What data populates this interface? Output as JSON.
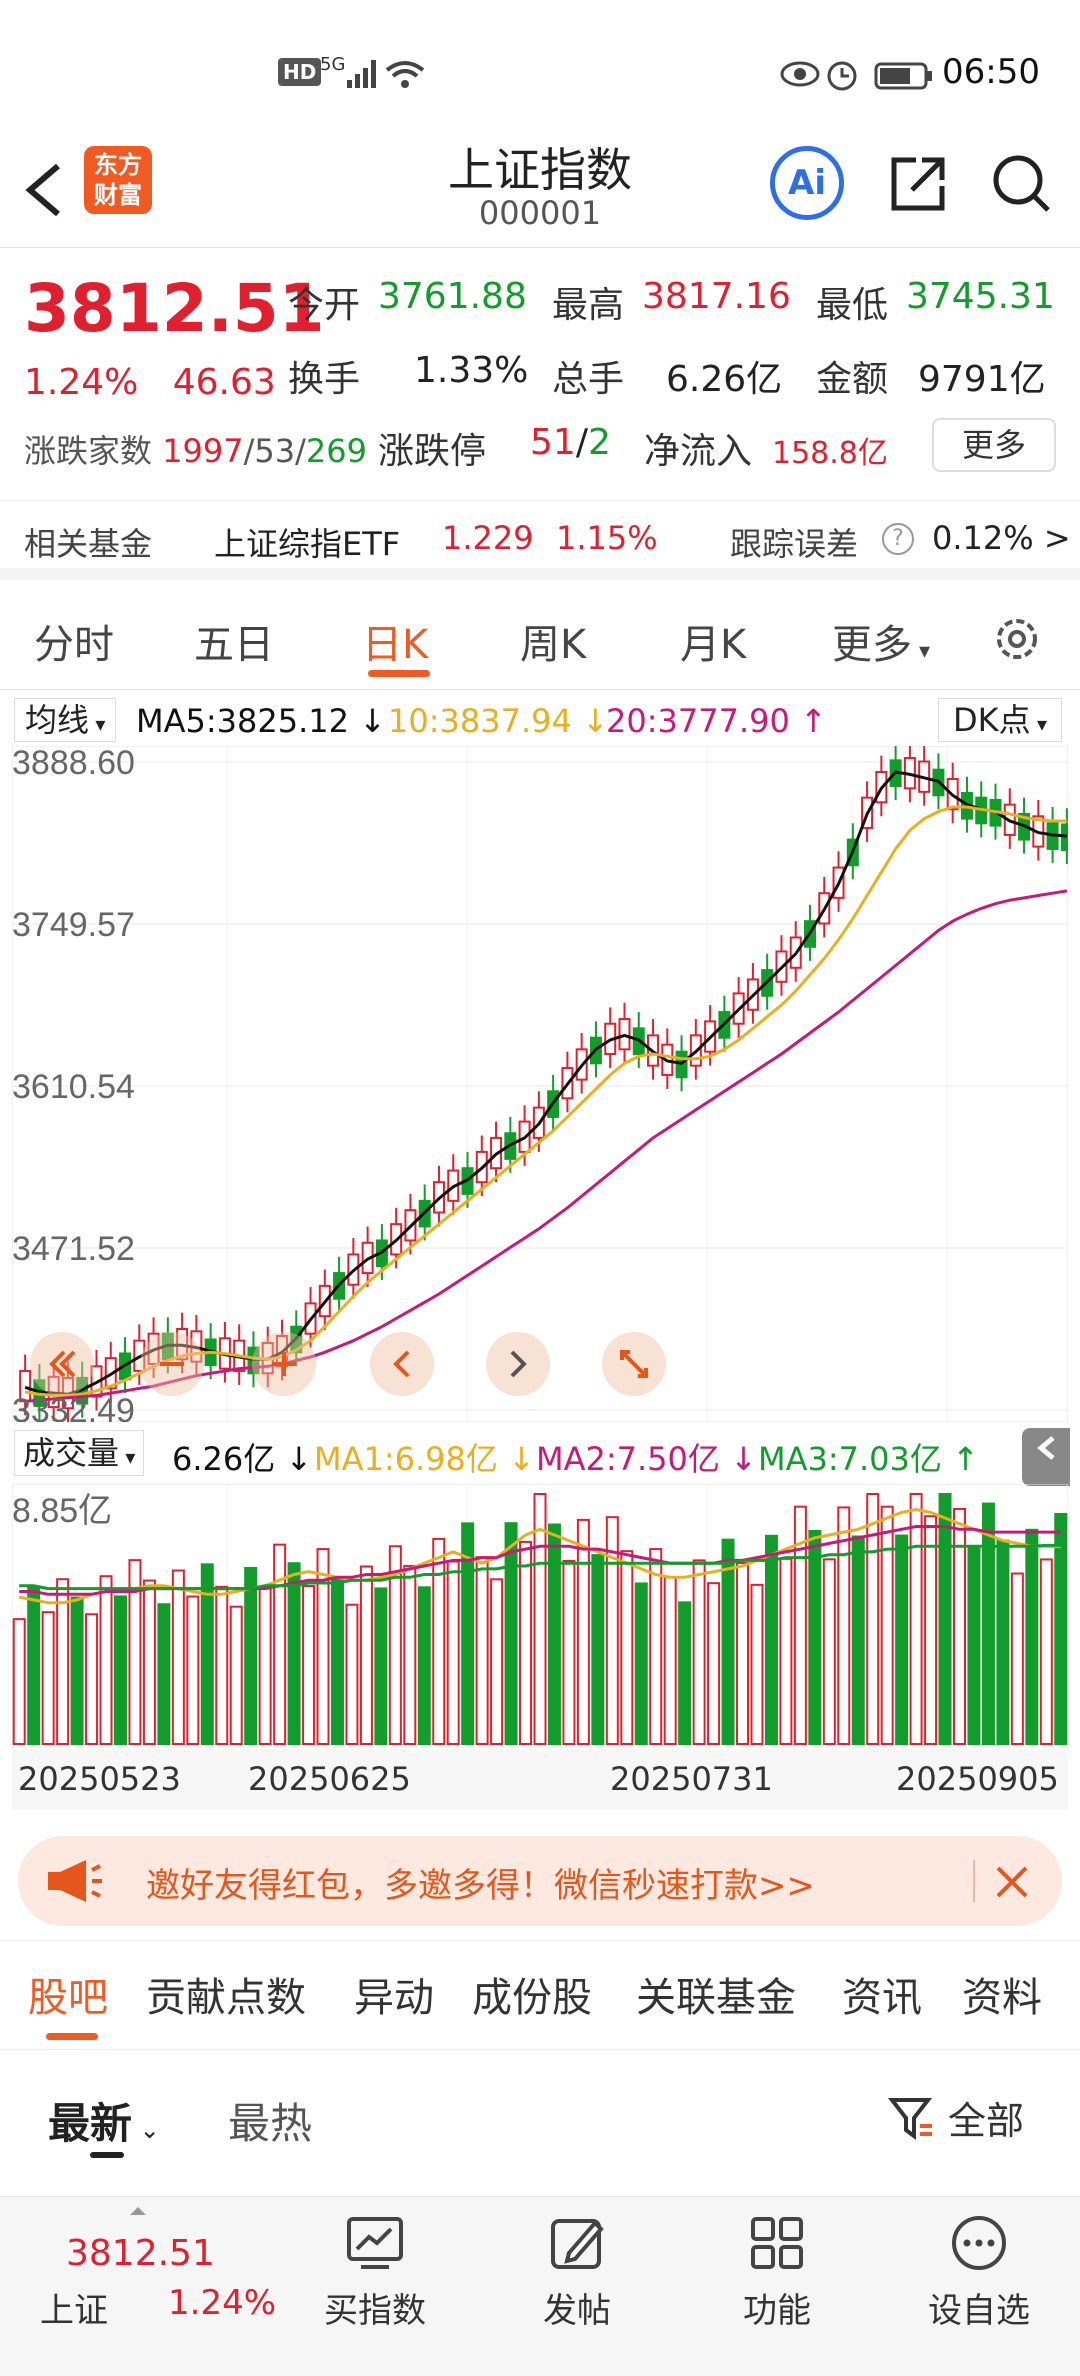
{
  "status_bar": {
    "time": "06:50",
    "hd": "HD",
    "network": "5G"
  },
  "header": {
    "logo_line1": "东方",
    "logo_line2": "财富",
    "title": "上证指数",
    "code": "000001",
    "ai_label": "Ai"
  },
  "quote": {
    "price": "3812.51",
    "change_pct": "1.24%",
    "change_pts": "46.63",
    "open_label": "今开",
    "open": "3761.88",
    "high_label": "最高",
    "high": "3817.16",
    "low_label": "最低",
    "low": "3745.31",
    "turnover_rate_label": "换手",
    "turnover_rate": "1.33%",
    "volume_label": "总手",
    "volume": "6.26亿",
    "amount_label": "金额",
    "amount": "9791亿",
    "breadth_label": "涨跌家数",
    "breadth_up": "1997",
    "breadth_flat": "53",
    "breadth_down": "269",
    "limit_label": "涨跌停",
    "limit_up": "51",
    "limit_down": "2",
    "netflow_label": "净流入",
    "netflow": "158.8亿",
    "more_label": "更多"
  },
  "fund": {
    "label": "相关基金",
    "name": "上证综指ETF",
    "price": "1.229",
    "pct": "1.15%",
    "tracking_label": "跟踪误差",
    "tracking_value": "0.12% >"
  },
  "period_tabs": [
    "分时",
    "五日",
    "日K",
    "周K",
    "月K",
    "更多"
  ],
  "active_period": "日K",
  "ma_legend": {
    "selector": "均线",
    "ma5": "MA5:3825.12",
    "ma10": "10:3837.94",
    "ma20": "20:3777.90",
    "dk": "DK点"
  },
  "vol_legend": {
    "selector": "成交量",
    "vol": "6.26亿",
    "ma1": "MA1:6.98亿",
    "ma2": "MA2:7.50亿",
    "ma3": "MA3:7.03亿"
  },
  "colors": {
    "up": "#e0202e",
    "down": "#129c2c",
    "ma5": "#111111",
    "ma10": "#e8b020",
    "ma20": "#c8197a",
    "accent": "#f15a22"
  },
  "chart_data": [
    {
      "type": "candlestick",
      "y_tick_labels": [
        "3888.60",
        "3749.57",
        "3610.54",
        "3471.52",
        "3332.49"
      ],
      "ylim": [
        3332.49,
        3888.6
      ],
      "grid": true,
      "series": [
        {
          "name": "MA5",
          "values": [
            3352,
            3348,
            3347,
            3346,
            3350,
            3356,
            3363,
            3371,
            3378,
            3384,
            3388,
            3388,
            3386,
            3383,
            3380,
            3378,
            3376,
            3376,
            3382,
            3394,
            3410,
            3425,
            3440,
            3452,
            3462,
            3468,
            3478,
            3490,
            3502,
            3514,
            3524,
            3530,
            3540,
            3552,
            3560,
            3566,
            3578,
            3596,
            3612,
            3628,
            3642,
            3650,
            3654,
            3650,
            3640,
            3632,
            3630,
            3640,
            3652,
            3664,
            3676,
            3688,
            3700,
            3712,
            3724,
            3742,
            3762,
            3784,
            3812,
            3844,
            3866,
            3880,
            3878,
            3875,
            3872,
            3860,
            3852,
            3848,
            3846,
            3838,
            3834,
            3828,
            3826,
            3825
          ]
        },
        {
          "name": "10",
          "values": [
            3348,
            3346,
            3345,
            3345,
            3346,
            3349,
            3353,
            3358,
            3364,
            3370,
            3375,
            3379,
            3381,
            3382,
            3381,
            3379,
            3377,
            3376,
            3378,
            3384,
            3392,
            3404,
            3417,
            3430,
            3442,
            3452,
            3462,
            3472,
            3482,
            3492,
            3502,
            3512,
            3522,
            3532,
            3542,
            3552,
            3562,
            3572,
            3584,
            3596,
            3608,
            3620,
            3630,
            3636,
            3638,
            3636,
            3634,
            3634,
            3636,
            3642,
            3650,
            3660,
            3670,
            3680,
            3692,
            3706,
            3720,
            3736,
            3754,
            3774,
            3794,
            3814,
            3830,
            3840,
            3846,
            3850,
            3850,
            3848,
            3846,
            3844,
            3841,
            3839,
            3838,
            3838
          ]
        },
        {
          "name": "20",
          "values": [
            3340,
            3341,
            3342,
            3343,
            3344,
            3345,
            3347,
            3349,
            3351,
            3353,
            3356,
            3359,
            3362,
            3364,
            3366,
            3368,
            3369,
            3370,
            3372,
            3375,
            3378,
            3382,
            3387,
            3392,
            3398,
            3404,
            3411,
            3418,
            3425,
            3432,
            3440,
            3448,
            3456,
            3464,
            3472,
            3480,
            3488,
            3497,
            3506,
            3516,
            3526,
            3536,
            3546,
            3556,
            3566,
            3574,
            3582,
            3590,
            3598,
            3606,
            3614,
            3622,
            3630,
            3638,
            3647,
            3656,
            3665,
            3674,
            3684,
            3694,
            3704,
            3714,
            3724,
            3734,
            3744,
            3752,
            3758,
            3763,
            3767,
            3770,
            3772,
            3774,
            3776,
            3778
          ]
        }
      ]
    },
    {
      "type": "bar",
      "y_tick_labels": [
        "8.85亿"
      ],
      "x_tick_labels": [
        "20250523",
        "20250625",
        "20250731",
        "20250905"
      ],
      "series": [
        {
          "name": "MA1",
          "values": [
            5.2,
            5.1,
            5.0,
            5.0,
            5.1,
            5.3,
            5.4,
            5.5,
            5.5,
            5.6,
            5.6,
            5.5,
            5.4,
            5.3,
            5.3,
            5.4,
            5.5,
            5.6,
            5.8,
            6.0,
            6.1,
            6.0,
            5.9,
            5.8,
            5.8,
            5.9,
            6.0,
            6.2,
            6.4,
            6.6,
            6.8,
            6.6,
            6.4,
            6.6,
            7.0,
            7.4,
            7.6,
            7.4,
            7.2,
            7.0,
            6.8,
            6.6,
            6.4,
            6.2,
            6.0,
            5.9,
            5.9,
            6.0,
            6.1,
            6.2,
            6.3,
            6.5,
            6.7,
            6.9,
            7.1,
            7.3,
            7.4,
            7.5,
            7.6,
            7.8,
            8.0,
            8.2,
            8.3,
            8.2,
            8.0,
            7.8,
            7.6,
            7.4,
            7.2,
            7.1,
            7.0,
            7.0,
            6.98
          ]
        },
        {
          "name": "MA2",
          "values": [
            5.4,
            5.4,
            5.3,
            5.3,
            5.3,
            5.3,
            5.4,
            5.4,
            5.4,
            5.5,
            5.5,
            5.5,
            5.5,
            5.5,
            5.5,
            5.5,
            5.5,
            5.5,
            5.6,
            5.7,
            5.8,
            5.8,
            5.9,
            5.9,
            6.0,
            6.0,
            6.1,
            6.2,
            6.3,
            6.4,
            6.5,
            6.5,
            6.6,
            6.6,
            6.8,
            6.9,
            7.0,
            7.0,
            7.0,
            6.9,
            6.9,
            6.8,
            6.7,
            6.6,
            6.5,
            6.4,
            6.4,
            6.4,
            6.4,
            6.5,
            6.5,
            6.6,
            6.7,
            6.8,
            6.9,
            7.0,
            7.1,
            7.2,
            7.3,
            7.4,
            7.5,
            7.6,
            7.7,
            7.7,
            7.7,
            7.6,
            7.6,
            7.5,
            7.5,
            7.5,
            7.5,
            7.5,
            7.5
          ]
        },
        {
          "name": "MA3",
          "values": [
            5.6,
            5.6,
            5.5,
            5.5,
            5.5,
            5.5,
            5.5,
            5.5,
            5.5,
            5.5,
            5.5,
            5.5,
            5.5,
            5.5,
            5.5,
            5.5,
            5.5,
            5.6,
            5.6,
            5.6,
            5.7,
            5.7,
            5.7,
            5.8,
            5.8,
            5.8,
            5.9,
            5.9,
            6.0,
            6.0,
            6.1,
            6.1,
            6.2,
            6.2,
            6.3,
            6.3,
            6.4,
            6.4,
            6.4,
            6.4,
            6.4,
            6.4,
            6.4,
            6.4,
            6.4,
            6.4,
            6.4,
            6.4,
            6.4,
            6.4,
            6.5,
            6.5,
            6.5,
            6.6,
            6.6,
            6.6,
            6.7,
            6.7,
            6.8,
            6.8,
            6.9,
            6.9,
            7.0,
            7.0,
            7.0,
            7.0,
            7.0,
            7.0,
            7.0,
            7.0,
            7.0,
            7.03,
            7.03
          ]
        }
      ]
    }
  ],
  "chart_controls": [
    "double-left-icon",
    "zoom-out-icon",
    "plus-icon",
    "chevron-left-icon",
    "chevron-right-icon",
    "expand-icon"
  ],
  "banner": {
    "text": "邀好友得红包，多邀多得！微信秒速打款>>"
  },
  "content_tabs": [
    "股吧",
    "贡献点数",
    "异动",
    "成份股",
    "关联基金",
    "资讯",
    "资料"
  ],
  "sort": {
    "latest": "最新",
    "hot": "最热",
    "filter": "全部"
  },
  "footer": {
    "index_price": "3812.51",
    "index_name": "上证",
    "index_change": "1.24%",
    "items": [
      "买指数",
      "发帖",
      "功能",
      "设自选"
    ]
  }
}
